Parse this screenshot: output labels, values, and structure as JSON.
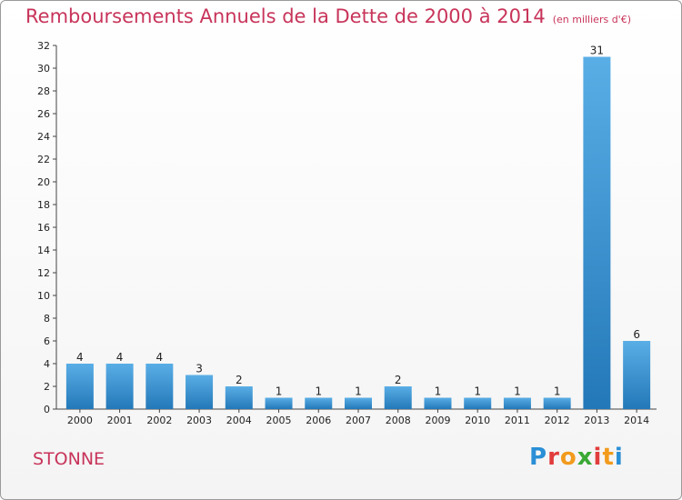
{
  "header": {
    "title": "Remboursements Annuels de la Dette de 2000 à 2014",
    "unit": "(en milliers d'€)"
  },
  "footer": {
    "commune": "STONNE",
    "logo_letters": [
      "P",
      "r",
      "o",
      "x",
      "i",
      "t",
      "i"
    ],
    "logo_colors": [
      "#2a8fd6",
      "#e23c3c",
      "#f29b1d",
      "#3aa935",
      "#e23c3c",
      "#f29b1d",
      "#2a8fd6"
    ]
  },
  "colors": {
    "bar_top": "#5aaee6",
    "bar_bottom": "#2378b8",
    "title": "#c8345a"
  },
  "chart_data": {
    "type": "bar",
    "title": "Remboursements Annuels de la Dette de 2000 à 2014",
    "xlabel": "",
    "ylabel": "",
    "categories": [
      "2000",
      "2001",
      "2002",
      "2003",
      "2004",
      "2005",
      "2006",
      "2007",
      "2008",
      "2009",
      "2010",
      "2011",
      "2012",
      "2013",
      "2014"
    ],
    "values": [
      4,
      4,
      4,
      3,
      2,
      1,
      1,
      1,
      2,
      1,
      1,
      1,
      1,
      31,
      6
    ],
    "ylim": [
      0,
      32
    ],
    "yticks": [
      0,
      2,
      4,
      6,
      8,
      10,
      12,
      14,
      16,
      18,
      20,
      22,
      24,
      26,
      28,
      30,
      32
    ],
    "grid": false,
    "legend": "none"
  }
}
